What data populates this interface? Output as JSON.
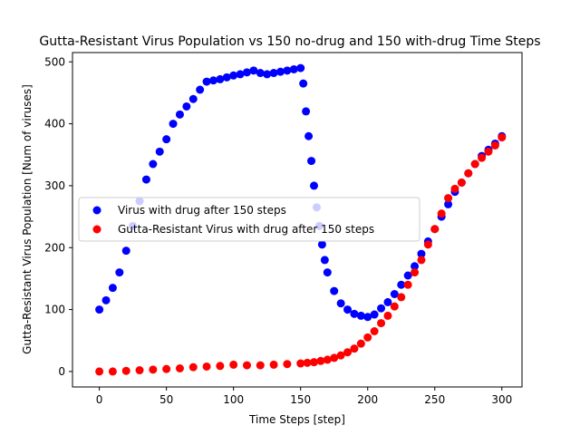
{
  "chart_data": {
    "type": "scatter",
    "title": "Gutta-Resistant Virus Population vs 150 no-drug and 150 with-drug Time Steps",
    "xlabel": "Time Steps [step]",
    "ylabel": "Gutta-Resistant Virus Population [Num of viruses]",
    "xlim": [
      -20,
      315
    ],
    "ylim": [
      -25,
      515
    ],
    "xticks": [
      0,
      50,
      100,
      150,
      200,
      250,
      300
    ],
    "yticks": [
      0,
      100,
      200,
      300,
      400,
      500
    ],
    "grid": false,
    "legend_position": "center-left",
    "series": [
      {
        "name": "Virus with drug after 150 steps",
        "color": "#0000ff",
        "x": [
          0,
          5,
          10,
          15,
          20,
          25,
          30,
          35,
          40,
          45,
          50,
          55,
          60,
          65,
          70,
          75,
          80,
          85,
          90,
          95,
          100,
          105,
          110,
          115,
          120,
          125,
          130,
          135,
          140,
          145,
          150,
          152,
          154,
          156,
          158,
          160,
          162,
          164,
          166,
          168,
          170,
          175,
          180,
          185,
          190,
          195,
          200,
          205,
          210,
          215,
          220,
          225,
          230,
          235,
          240,
          245,
          250,
          255,
          260,
          265,
          270,
          275,
          280,
          285,
          290,
          295,
          300
        ],
        "y": [
          100,
          115,
          135,
          160,
          195,
          235,
          275,
          310,
          335,
          355,
          375,
          400,
          415,
          428,
          440,
          455,
          468,
          470,
          472,
          475,
          478,
          480,
          483,
          486,
          482,
          480,
          482,
          484,
          486,
          488,
          490,
          465,
          420,
          380,
          340,
          300,
          265,
          235,
          205,
          180,
          160,
          130,
          110,
          100,
          93,
          90,
          88,
          92,
          102,
          112,
          125,
          140,
          155,
          170,
          190,
          210,
          230,
          250,
          270,
          290,
          305,
          320,
          335,
          348,
          358,
          368,
          380
        ]
      },
      {
        "name": "Gutta-Resistant Virus with drug after 150 steps",
        "color": "#ff0000",
        "x": [
          0,
          10,
          20,
          30,
          40,
          50,
          60,
          70,
          80,
          90,
          100,
          110,
          120,
          130,
          140,
          150,
          155,
          160,
          165,
          170,
          175,
          180,
          185,
          190,
          195,
          200,
          205,
          210,
          215,
          220,
          225,
          230,
          235,
          240,
          245,
          250,
          255,
          260,
          265,
          270,
          275,
          280,
          285,
          290,
          295,
          300
        ],
        "y": [
          0,
          0,
          1,
          2,
          3,
          4,
          5,
          7,
          8,
          9,
          11,
          10,
          10,
          11,
          12,
          13,
          14,
          15,
          17,
          19,
          22,
          26,
          31,
          37,
          45,
          55,
          65,
          78,
          90,
          105,
          120,
          140,
          160,
          180,
          205,
          230,
          255,
          280,
          295,
          305,
          320,
          335,
          345,
          355,
          365,
          378
        ]
      }
    ]
  }
}
